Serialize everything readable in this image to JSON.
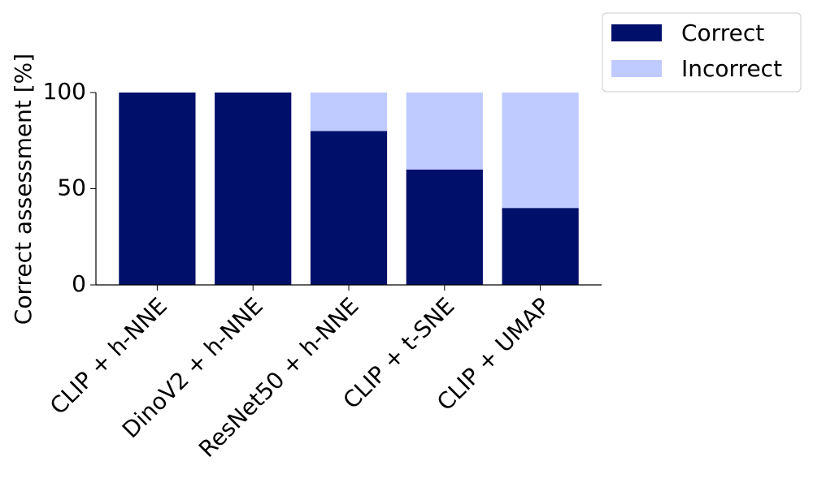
{
  "chart_data": {
    "type": "stacked_bar",
    "y_label": "Correct assessment [%]",
    "categories": [
      "CLIP + h-NNE",
      "DinoV2 + h-NNE",
      "ResNet50 + h-NNE",
      "CLIP + t-SNE",
      "CLIP + UMAP"
    ],
    "series": [
      {
        "name": "Correct",
        "color": "#00106a",
        "values": [
          100,
          100,
          80,
          60,
          40
        ]
      },
      {
        "name": "Incorrect",
        "color": "#bfcbff",
        "values": [
          0,
          0,
          20,
          40,
          60
        ]
      }
    ],
    "ylim": [
      0,
      100
    ],
    "yticks": [
      0,
      50,
      100
    ],
    "grid": false,
    "legend": "outside upper right"
  }
}
